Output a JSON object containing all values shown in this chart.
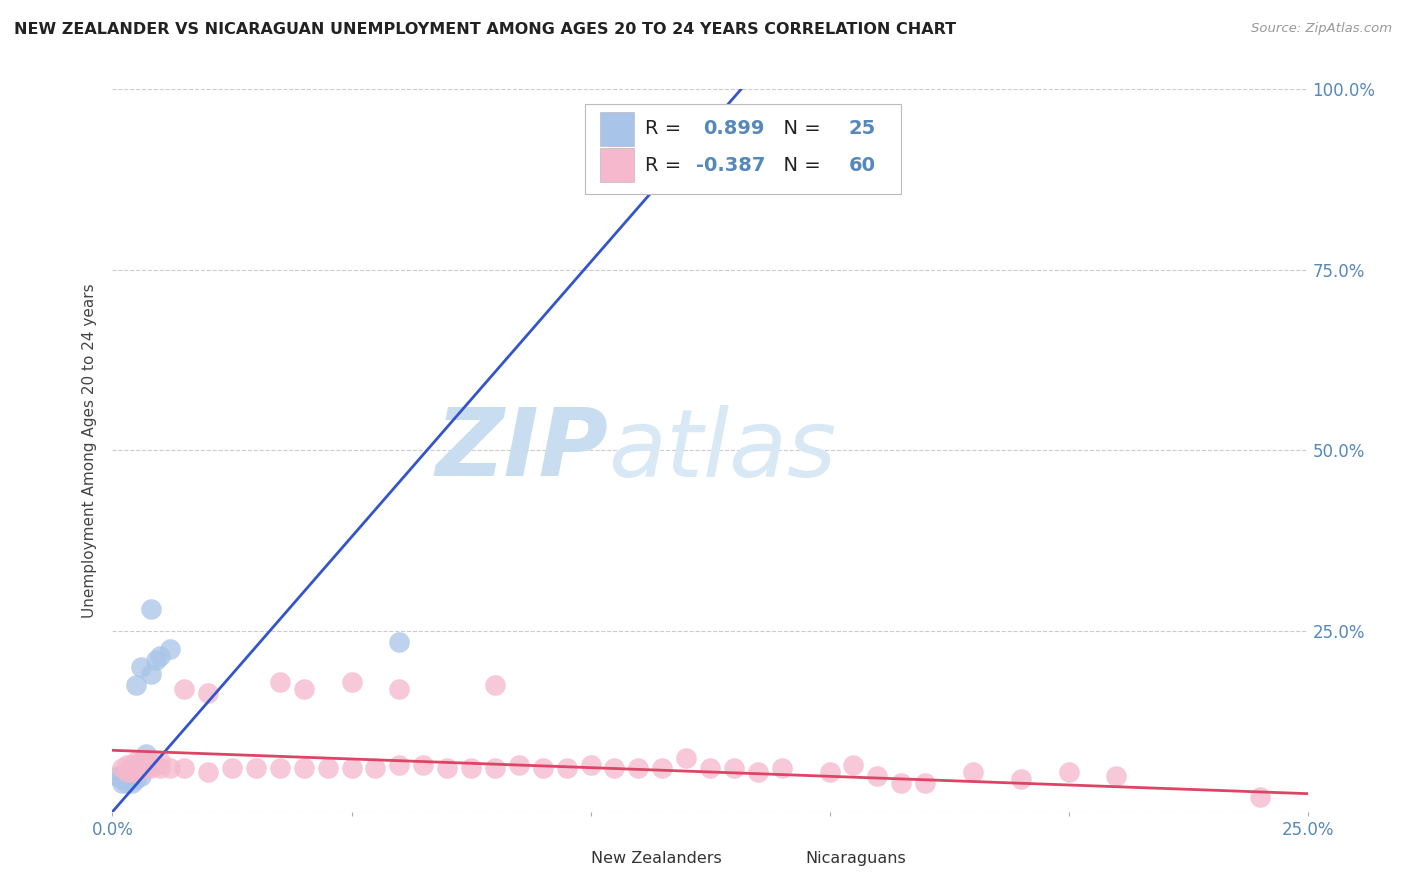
{
  "title": "NEW ZEALANDER VS NICARAGUAN UNEMPLOYMENT AMONG AGES 20 TO 24 YEARS CORRELATION CHART",
  "source": "Source: ZipAtlas.com",
  "ylabel": "Unemployment Among Ages 20 to 24 years",
  "xlim": [
    0.0,
    0.25
  ],
  "ylim": [
    0.0,
    1.0
  ],
  "x_tick_positions": [
    0.0,
    0.05,
    0.1,
    0.15,
    0.2,
    0.25
  ],
  "x_tick_labels": [
    "0.0%",
    "",
    "",
    "",
    "",
    "25.0%"
  ],
  "y_tick_positions": [
    0.0,
    0.25,
    0.5,
    0.75,
    1.0
  ],
  "y_tick_labels_right": [
    "",
    "25.0%",
    "50.0%",
    "75.0%",
    "100.0%"
  ],
  "nz_color": "#a8c4e8",
  "nz_line_color": "#3355cc",
  "nic_color": "#f5b8cc",
  "nic_line_color": "#dd4466",
  "nz_R": 0.899,
  "nz_N": 25,
  "nic_R": -0.387,
  "nic_N": 60,
  "legend_label_nz": "New Zealanders",
  "legend_label_nic": "Nicaraguans",
  "watermark_zip": "ZIP",
  "watermark_atlas": "atlas",
  "background_color": "#ffffff",
  "grid_color": "#cccccc",
  "title_color": "#222222",
  "axis_color": "#5588bb",
  "nz_line_x0": 0.0,
  "nz_line_y0": 0.0,
  "nz_line_x1": 0.1315,
  "nz_line_y1": 1.0,
  "nic_line_x0": 0.0,
  "nic_line_y0": 0.085,
  "nic_line_x1": 0.25,
  "nic_line_y1": 0.025,
  "nz_scatter_x": [
    0.001,
    0.002,
    0.002,
    0.002,
    0.003,
    0.003,
    0.003,
    0.003,
    0.004,
    0.004,
    0.004,
    0.005,
    0.005,
    0.005,
    0.006,
    0.006,
    0.006,
    0.007,
    0.007,
    0.008,
    0.008,
    0.009,
    0.01,
    0.012,
    0.06
  ],
  "nz_scatter_y": [
    0.05,
    0.04,
    0.05,
    0.045,
    0.04,
    0.045,
    0.05,
    0.055,
    0.04,
    0.045,
    0.055,
    0.045,
    0.06,
    0.175,
    0.05,
    0.06,
    0.2,
    0.06,
    0.08,
    0.19,
    0.28,
    0.21,
    0.215,
    0.225,
    0.235
  ],
  "nic_scatter_x": [
    0.002,
    0.003,
    0.003,
    0.004,
    0.004,
    0.005,
    0.005,
    0.006,
    0.006,
    0.007,
    0.007,
    0.008,
    0.008,
    0.009,
    0.01,
    0.01,
    0.012,
    0.015,
    0.015,
    0.02,
    0.02,
    0.025,
    0.03,
    0.035,
    0.035,
    0.04,
    0.04,
    0.045,
    0.05,
    0.05,
    0.055,
    0.06,
    0.06,
    0.065,
    0.07,
    0.075,
    0.08,
    0.08,
    0.085,
    0.09,
    0.095,
    0.1,
    0.105,
    0.11,
    0.115,
    0.12,
    0.125,
    0.13,
    0.135,
    0.14,
    0.15,
    0.155,
    0.16,
    0.165,
    0.17,
    0.18,
    0.19,
    0.2,
    0.21,
    0.24
  ],
  "nic_scatter_y": [
    0.06,
    0.055,
    0.065,
    0.055,
    0.065,
    0.055,
    0.07,
    0.06,
    0.07,
    0.06,
    0.075,
    0.06,
    0.065,
    0.065,
    0.06,
    0.07,
    0.06,
    0.06,
    0.17,
    0.055,
    0.165,
    0.06,
    0.06,
    0.06,
    0.18,
    0.06,
    0.17,
    0.06,
    0.06,
    0.18,
    0.06,
    0.065,
    0.17,
    0.065,
    0.06,
    0.06,
    0.06,
    0.175,
    0.065,
    0.06,
    0.06,
    0.065,
    0.06,
    0.06,
    0.06,
    0.075,
    0.06,
    0.06,
    0.055,
    0.06,
    0.055,
    0.065,
    0.05,
    0.04,
    0.04,
    0.055,
    0.045,
    0.055,
    0.05,
    0.02
  ]
}
